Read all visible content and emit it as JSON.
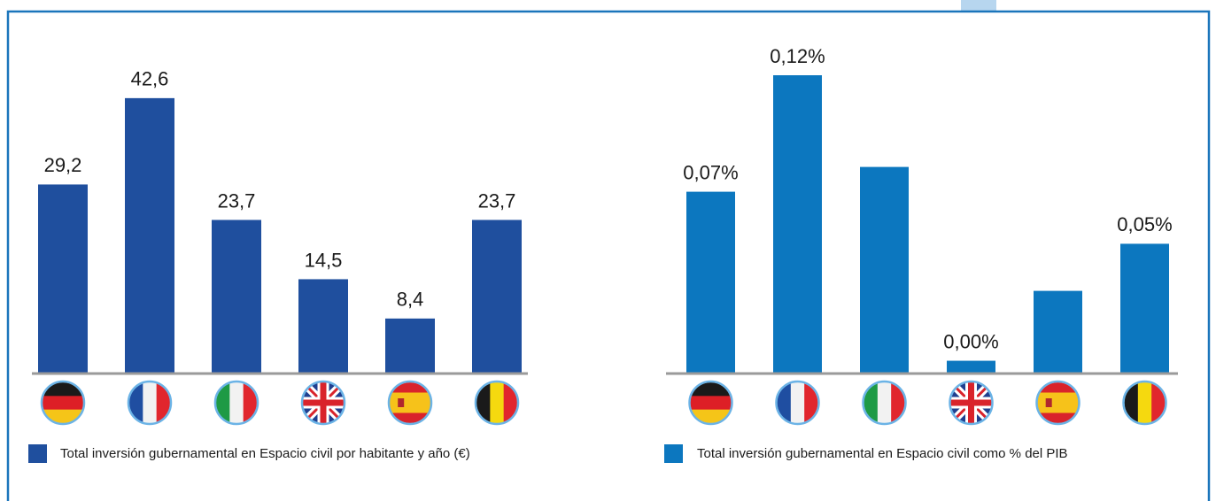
{
  "chart_data": [
    {
      "type": "bar",
      "categories": [
        null,
        null,
        null,
        null,
        null,
        null
      ],
      "series": [
        {
          "name": "Total inversión gubernamental en Espacio civil por habitante y año (€)",
          "color": "#1f4f9e",
          "values": [
            29.2,
            42.6,
            23.7,
            14.5,
            8.4,
            23.7
          ],
          "value_labels": [
            "29,2",
            "42,6",
            "23,7",
            "14,5",
            "8,4",
            "23,7"
          ]
        }
      ],
      "ylim": [
        0,
        50
      ]
    },
    {
      "type": "bar",
      "categories": [
        null,
        null,
        null,
        null,
        null,
        null
      ],
      "series": [
        {
          "name": "Total inversión gubernamental en Espacio civil como % del PIB",
          "color": "#0c77bf",
          "values": [
            0.073,
            0.12,
            0.083,
            0.0048,
            0.033,
            0.052
          ],
          "value_labels": [
            "0,07%",
            "0,12%",
            null,
            "0,00%",
            null,
            "0,05%"
          ]
        }
      ],
      "ylim": [
        0,
        0.13
      ]
    }
  ]
}
